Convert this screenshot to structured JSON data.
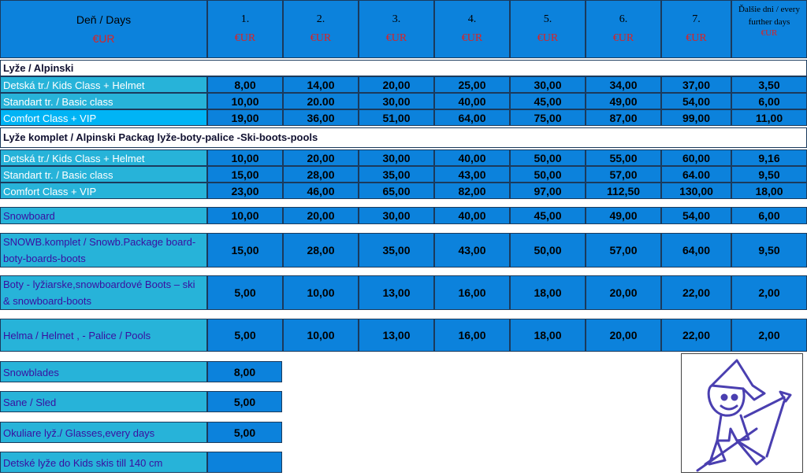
{
  "header": {
    "days_label": "Deň / Days",
    "currency": "€UR",
    "day_cols": [
      "1.",
      "2.",
      "3.",
      "4.",
      "5.",
      "6.",
      "7."
    ],
    "further_label": "Ďalšie dni / every further days"
  },
  "sections": {
    "alpine": "Lyže / Alpinski",
    "alpine_package": "Lyže komplet / Alpinski Packag   lyže-boty-palice -Ski-boots-pools"
  },
  "alpine_rows": [
    {
      "label": "Detská tr./ Kids Class + Helmet",
      "values": [
        "8,00",
        "14,00",
        "20,00",
        "25,00",
        "30,00",
        "34,00",
        "37,00",
        "3,50"
      ]
    },
    {
      "label": "Standart tr. / Basic class",
      "values": [
        "10,00",
        "20.00",
        "30,00",
        "40,00",
        "45,00",
        "49,00",
        "54,00",
        "6,00"
      ]
    },
    {
      "label": "Comfort Class + VIP",
      "values": [
        "19,00",
        "36,00",
        "51,00",
        "64,00",
        "75,00",
        "87,00",
        "99,00",
        "11,00"
      ]
    }
  ],
  "package_rows": [
    {
      "label": "Detská tr./ Kids Class + Helmet",
      "values": [
        "10,00",
        "20,00",
        "30,00",
        "40,00",
        "50,00",
        "55,00",
        "60,00",
        "9,16"
      ]
    },
    {
      "label": "Standart tr. / Basic class",
      "values": [
        "15,00",
        "28,00",
        "35,00",
        "43,00",
        "50,00",
        "57,00",
        "64.00",
        "9,50"
      ]
    },
    {
      "label": "Comfort Class + VIP",
      "values": [
        "23,00",
        "46,00",
        "65,00",
        "82,00",
        "97,00",
        "112,50",
        "130,00",
        "18,00"
      ]
    }
  ],
  "single_rows": [
    {
      "label": "Snowboard",
      "values": [
        "10,00",
        "20,00",
        "30,00",
        "40,00",
        "45,00",
        "49,00",
        "54,00",
        "6,00"
      ]
    },
    {
      "label": "SNOWB.komplet / Snowb.Package board-boty-boards-boots",
      "values": [
        "15,00",
        "28,00",
        "35,00",
        "43,00",
        "50,00",
        "57,00",
        "64,00",
        "9,50"
      ]
    },
    {
      "label": "Boty - lyžiarske,snowboardové    Boots – ski & snowboard-boots",
      "values": [
        "5,00",
        "10,00",
        "13,00",
        "16,00",
        "18,00",
        "20,00",
        "22,00",
        "2,00"
      ]
    },
    {
      "label": "Helma / Helmet , -  Palice /  Pools",
      "values": [
        "5,00",
        "10,00",
        "13,00",
        "16,00",
        "18,00",
        "20,00",
        "22,00",
        "2,00"
      ]
    }
  ],
  "extra_rows": [
    {
      "label": "Snowblades",
      "value": "8,00"
    },
    {
      "label": "Sane / Sled",
      "value": "5,00"
    },
    {
      "label": "Okuliare lyž./ Glasses,every days",
      "value": "5,00"
    },
    {
      "label": "Detské lyže do Kids skis till 140 cm",
      "value": ""
    }
  ],
  "colors": {
    "cell_blue": "#0c82dc",
    "label_cyan": "#27b3d9",
    "highlight": "#00b4f5",
    "currency_red": "#dd2222",
    "text_purple": "#3a0fa0"
  }
}
